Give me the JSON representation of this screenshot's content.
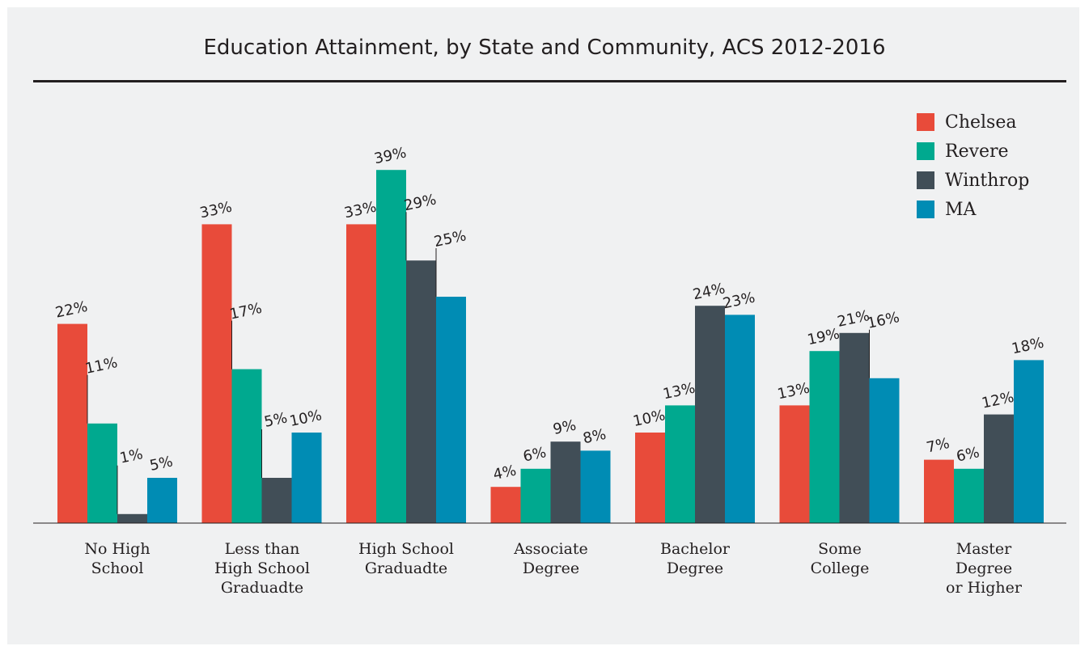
{
  "chart_data": {
    "type": "bar",
    "title": "Education Attainment, by State and Community, ACS 2012-2016",
    "categories": [
      "No High\nSchool",
      "Less than\nHigh School\nGraduadte",
      "High School\nGraduadte",
      "Associate\nDegree",
      "Bachelor\nDegree",
      "Some\nCollege",
      "Master\nDegree\nor Higher"
    ],
    "series": [
      {
        "name": "Chelsea",
        "color": "#e84b3a",
        "values": [
          22,
          33,
          33,
          4,
          10,
          13,
          7
        ],
        "labels": [
          "22%",
          "33%",
          "33%",
          "4%",
          "10%",
          "13%",
          "7%"
        ]
      },
      {
        "name": "Revere",
        "color": "#00a98f",
        "values": [
          11,
          17,
          39,
          6,
          13,
          19,
          6
        ],
        "labels": [
          "11%",
          "17%",
          "39%",
          "6%",
          "13%",
          "19%",
          "6%"
        ]
      },
      {
        "name": "Winthrop",
        "color": "#414e57",
        "values": [
          1,
          5,
          29,
          9,
          24,
          21,
          12
        ],
        "labels": [
          "1%",
          "5%",
          "29%",
          "9%",
          "24%",
          "21%",
          "12%"
        ]
      },
      {
        "name": "MA",
        "color": "#008cb4",
        "values": [
          5,
          10,
          25,
          8,
          23,
          16,
          18
        ],
        "labels": [
          "5%",
          "10%",
          "25%",
          "8%",
          "23%",
          "16%",
          "18%"
        ]
      }
    ],
    "ylim": [
      0,
      42
    ],
    "legend_position": "top-right",
    "grid": false
  }
}
